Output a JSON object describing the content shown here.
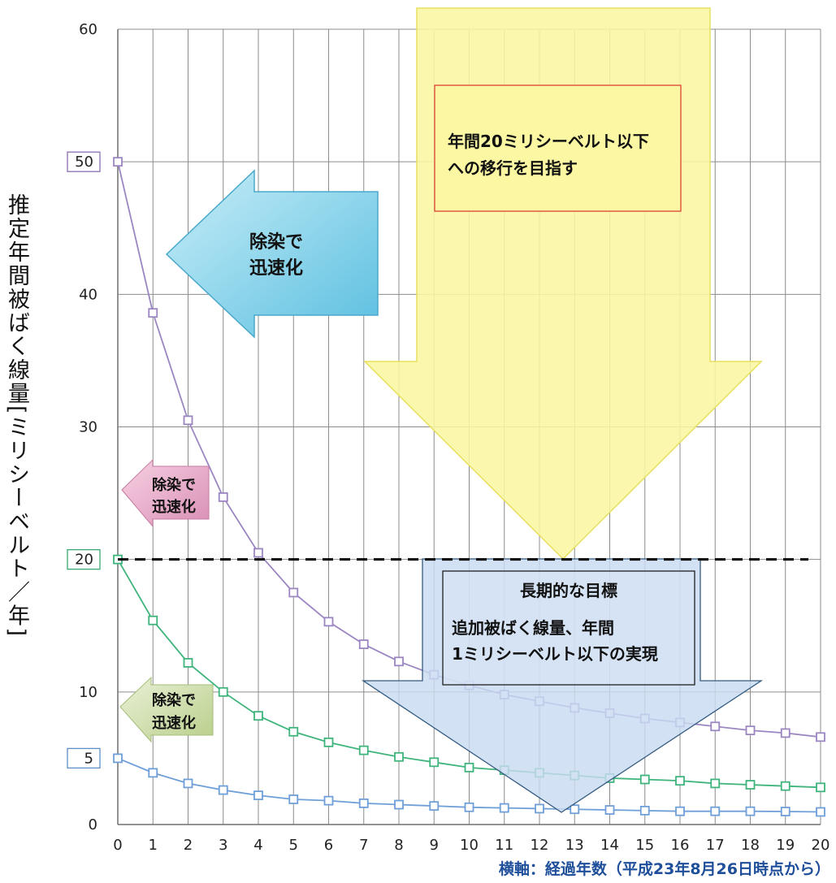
{
  "chart_data": {
    "type": "line",
    "ylabel": "推定年間被ばく線量[ミリシーベルト／年]",
    "xlabel": "横軸：経過年数（平成23年8月26日時点から）",
    "x": [
      0,
      1,
      2,
      3,
      4,
      5,
      6,
      7,
      8,
      9,
      10,
      11,
      12,
      13,
      14,
      15,
      16,
      17,
      18,
      19,
      20
    ],
    "ylim": [
      0,
      60
    ],
    "xlim": [
      0,
      20
    ],
    "yticks": [
      "0",
      "10",
      "20",
      "30",
      "40",
      "60"
    ],
    "yticks_boxed": [
      {
        "value": 50,
        "label": "50",
        "color": "#8a6fb0"
      },
      {
        "value": 20,
        "label": "20",
        "color": "#3aa870"
      },
      {
        "value": 5,
        "label": "5",
        "color": "#5b8fc7"
      }
    ],
    "xticks": [
      "0",
      "1",
      "2",
      "3",
      "4",
      "5",
      "6",
      "7",
      "8",
      "9",
      "10",
      "11",
      "12",
      "13",
      "14",
      "15",
      "16",
      "17",
      "18",
      "19",
      "20"
    ],
    "grid": true,
    "series": [
      {
        "color": "#9b86c2",
        "values": [
          50,
          38.6,
          30.5,
          24.7,
          20.5,
          17.5,
          15.3,
          13.6,
          12.3,
          11.3,
          10.5,
          9.8,
          9.3,
          8.8,
          8.4,
          8,
          7.7,
          7.4,
          7.1,
          6.9,
          6.6
        ]
      },
      {
        "color": "#3fb47c",
        "values": [
          20,
          15.4,
          12.2,
          10,
          8.2,
          7,
          6.2,
          5.6,
          5.1,
          4.7,
          4.3,
          4.1,
          3.9,
          3.7,
          3.5,
          3.4,
          3.3,
          3.1,
          3,
          2.9,
          2.8
        ]
      },
      {
        "color": "#6f9fd8",
        "values": [
          5,
          3.9,
          3.1,
          2.6,
          2.2,
          1.9,
          1.8,
          1.6,
          1.5,
          1.4,
          1.3,
          1.25,
          1.2,
          1.15,
          1.1,
          1.05,
          1,
          1,
          1,
          0.98,
          0.95
        ]
      }
    ],
    "reference_line": {
      "value": 20,
      "style": "dashed",
      "color": "#000000"
    },
    "annotations": {
      "yellow_text_line1": "年間20ミリシーベルト以下",
      "yellow_text_line2": "への移行を目指す",
      "blue_title": "長期的な目標",
      "blue_text_line1": "追加被ばく線量、年間",
      "blue_text_line2": "1ミリシーベルト以下の実現",
      "arrow_big_line1": "除染で",
      "arrow_big_line2": "迅速化",
      "arrow_pink_line1": "除染で",
      "arrow_pink_line2": "迅速化",
      "arrow_green_line1": "除染で",
      "arrow_green_line2": "迅速化"
    }
  }
}
